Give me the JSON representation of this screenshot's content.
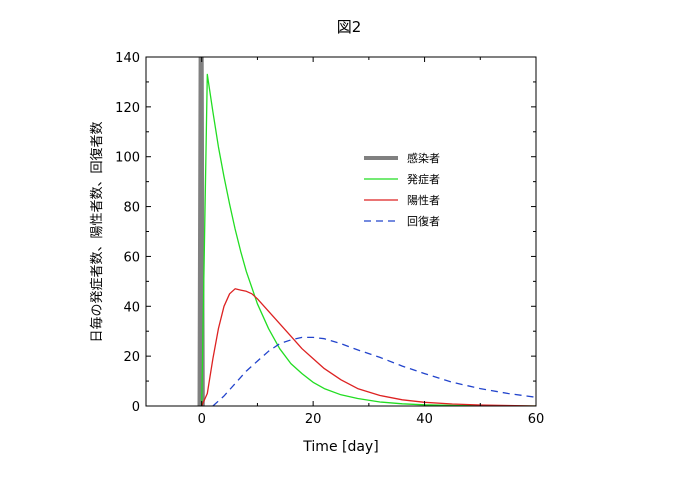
{
  "chart_data": {
    "type": "line",
    "title": "図2",
    "xlabel": "Time [day]",
    "ylabel": "日毎の発症者数、陽性者数、回復者数",
    "xlim": [
      -10,
      60
    ],
    "ylim": [
      0,
      140
    ],
    "x_ticks": [
      0,
      20,
      40,
      60
    ],
    "y_ticks": [
      0,
      20,
      40,
      60,
      80,
      100,
      120,
      140
    ],
    "grid": false,
    "legend": "upper-right inside plot",
    "series": [
      {
        "name": "感染者",
        "color": "#808080",
        "style": "solid-thick",
        "x": [
          -0.4,
          -0.2,
          0,
          0.2
        ],
        "y": [
          0,
          140,
          140,
          0
        ]
      },
      {
        "name": "発症者",
        "color": "#22dd22",
        "style": "solid",
        "x": [
          0,
          1,
          2,
          3,
          4,
          5,
          6,
          7,
          8,
          10,
          12,
          14,
          16,
          18,
          20,
          22,
          25,
          28,
          32,
          36,
          40,
          45,
          50,
          55,
          60
        ],
        "y": [
          0,
          133,
          118,
          104,
          92,
          81,
          71,
          62,
          54,
          41,
          31,
          23,
          17,
          13,
          9.5,
          7,
          4.5,
          3,
          1.6,
          0.9,
          0.5,
          0.25,
          0.1,
          0.05,
          0
        ]
      },
      {
        "name": "陽性者",
        "color": "#dd2222",
        "style": "solid",
        "x": [
          0,
          1,
          2,
          3,
          4,
          5,
          6,
          7,
          8,
          9,
          10,
          12,
          14,
          16,
          18,
          20,
          22,
          25,
          28,
          32,
          36,
          40,
          45,
          50,
          55,
          60
        ],
        "y": [
          0,
          5,
          19,
          31,
          40,
          45,
          47,
          46.5,
          46,
          45,
          43,
          38,
          33,
          28,
          23,
          19,
          15,
          10.5,
          7,
          4.2,
          2.5,
          1.5,
          0.8,
          0.4,
          0.2,
          0
        ]
      },
      {
        "name": "回復者",
        "color": "#2244cc",
        "style": "dashed",
        "x": [
          2,
          4,
          6,
          8,
          10,
          12,
          14,
          16,
          18,
          20,
          22,
          25,
          28,
          32,
          36,
          40,
          45,
          50,
          55,
          60
        ],
        "y": [
          0,
          4,
          9,
          14,
          18,
          22,
          25,
          26.5,
          27.5,
          27.5,
          27,
          25,
          22.5,
          19.5,
          16,
          13,
          9.5,
          7,
          5,
          3.5
        ]
      }
    ]
  }
}
